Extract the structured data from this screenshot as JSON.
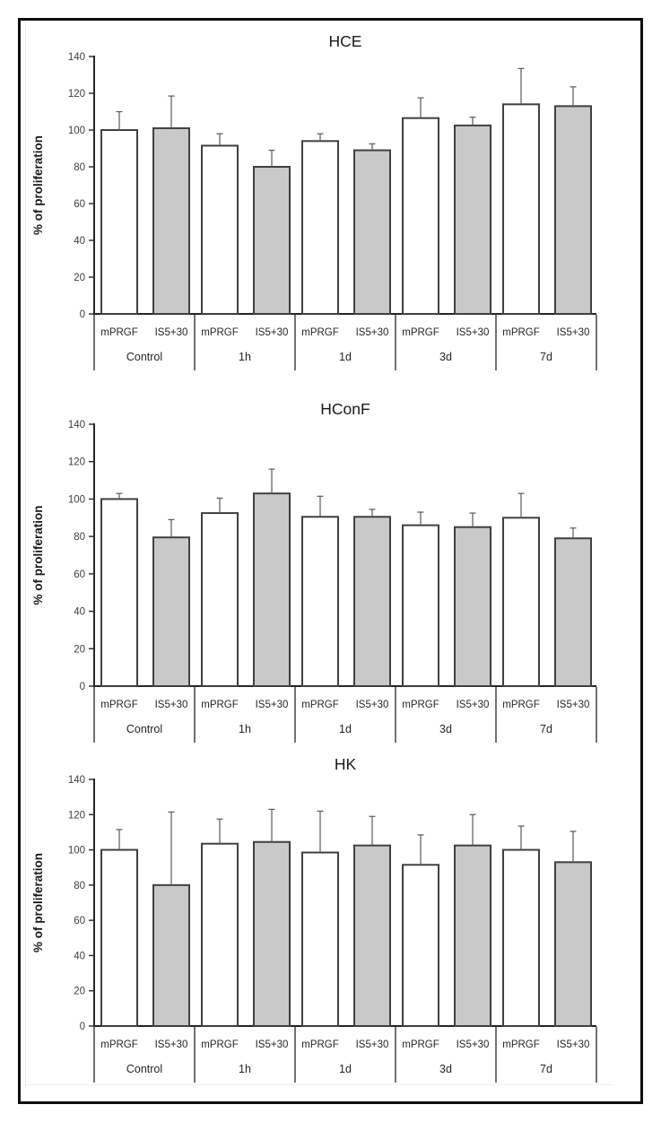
{
  "figure": {
    "ylabel": "% of proliferation",
    "series_labels": [
      "mPRGF",
      "IS5+30"
    ],
    "group_labels": [
      "Control",
      "1h",
      "1d",
      "3d",
      "7d"
    ],
    "colors": {
      "bar_white_fill": "#ffffff",
      "bar_gray_fill": "#c9c9c9",
      "bar_border": "#404040",
      "error_bar": "#595959",
      "axis_line": "#262626",
      "tick_text": "#3f3f3f",
      "label_text": "#262626",
      "title_text": "#1a1a1a",
      "frame_border": "#0e0e0e"
    }
  },
  "chart_data": [
    {
      "type": "bar",
      "title": "HCE",
      "ylabel": "% of proliferation",
      "ylim": [
        0,
        140
      ],
      "yticks": [
        0,
        20,
        40,
        60,
        80,
        100,
        120,
        140
      ],
      "grid": false,
      "legend": "none",
      "categories": [
        "Control",
        "1h",
        "1d",
        "3d",
        "7d"
      ],
      "series": [
        {
          "name": "mPRGF",
          "fill": "white",
          "values": [
            100,
            91.5,
            94,
            106.5,
            114
          ],
          "errors_plus": [
            10,
            6.5,
            4,
            11,
            19.5
          ]
        },
        {
          "name": "IS5+30",
          "fill": "gray",
          "values": [
            101,
            80,
            89,
            102.5,
            113
          ],
          "errors_plus": [
            17.5,
            9,
            3.5,
            4.5,
            10.5
          ]
        }
      ]
    },
    {
      "type": "bar",
      "title": "HConF",
      "ylabel": "% of proliferation",
      "ylim": [
        0,
        140
      ],
      "yticks": [
        0,
        20,
        40,
        60,
        80,
        100,
        120,
        140
      ],
      "grid": false,
      "legend": "none",
      "categories": [
        "Control",
        "1h",
        "1d",
        "3d",
        "7d"
      ],
      "series": [
        {
          "name": "mPRGF",
          "fill": "white",
          "values": [
            100,
            92.5,
            90.5,
            86,
            90
          ],
          "errors_plus": [
            3,
            8,
            11,
            7,
            13
          ]
        },
        {
          "name": "IS5+30",
          "fill": "gray",
          "values": [
            79.5,
            103,
            90.5,
            85,
            79
          ],
          "errors_plus": [
            9.5,
            13,
            4,
            7.5,
            5.5
          ]
        }
      ]
    },
    {
      "type": "bar",
      "title": "HK",
      "ylabel": "% of proliferation",
      "ylim": [
        0,
        140
      ],
      "yticks": [
        0,
        20,
        40,
        60,
        80,
        100,
        120,
        140
      ],
      "grid": false,
      "legend": "none",
      "categories": [
        "Control",
        "1h",
        "1d",
        "3d",
        "7d"
      ],
      "series": [
        {
          "name": "mPRGF",
          "fill": "white",
          "values": [
            100,
            103.5,
            98.5,
            91.5,
            100
          ],
          "errors_plus": [
            11.5,
            14,
            23.5,
            17,
            13.5
          ]
        },
        {
          "name": "IS5+30",
          "fill": "gray",
          "values": [
            80,
            104.5,
            102.5,
            102.5,
            93
          ],
          "errors_plus": [
            41.5,
            18.5,
            16.5,
            17.5,
            17.5
          ]
        }
      ]
    }
  ]
}
